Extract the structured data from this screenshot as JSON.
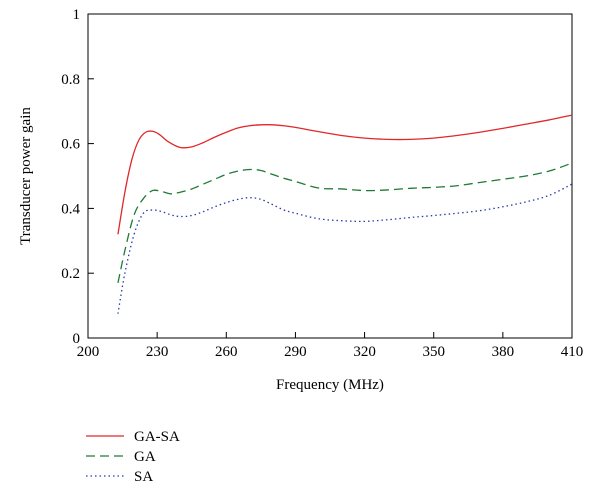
{
  "chart_data": {
    "type": "line",
    "xlabel": "Frequency (MHz)",
    "ylabel": "Transducer power gain",
    "xlim": [
      200,
      410
    ],
    "ylim": [
      0,
      1
    ],
    "xticks": [
      200,
      230,
      260,
      290,
      320,
      350,
      380,
      410
    ],
    "xtick_labels": [
      "200",
      "230",
      "260",
      "290",
      "320",
      "350",
      "380",
      "410"
    ],
    "yticks": [
      0,
      0.2,
      0.4,
      0.6,
      0.8,
      1
    ],
    "ytick_labels": [
      "0",
      "0.2",
      "0.4",
      "0.6",
      "0.8",
      "1"
    ],
    "grid": false,
    "legend_position": "below",
    "series": [
      {
        "name": "GA-SA",
        "color": "#e0282a",
        "dash": "solid",
        "x": [
          213,
          216,
          219,
          222,
          225,
          228,
          231,
          235,
          240,
          245,
          250,
          255,
          260,
          265,
          270,
          275,
          280,
          285,
          290,
          300,
          310,
          320,
          330,
          340,
          350,
          360,
          370,
          380,
          390,
          400,
          410
        ],
        "y": [
          0.32,
          0.45,
          0.55,
          0.61,
          0.635,
          0.638,
          0.628,
          0.605,
          0.588,
          0.59,
          0.603,
          0.62,
          0.635,
          0.648,
          0.655,
          0.658,
          0.658,
          0.655,
          0.65,
          0.637,
          0.625,
          0.617,
          0.613,
          0.613,
          0.617,
          0.625,
          0.635,
          0.647,
          0.66,
          0.673,
          0.688
        ]
      },
      {
        "name": "GA",
        "color": "#1f7a36",
        "dash": "dashed",
        "x": [
          213,
          216,
          220,
          224,
          228,
          232,
          236,
          240,
          245,
          250,
          255,
          260,
          265,
          270,
          275,
          280,
          285,
          290,
          300,
          310,
          320,
          330,
          340,
          350,
          360,
          370,
          380,
          390,
          400,
          410
        ],
        "y": [
          0.17,
          0.27,
          0.38,
          0.43,
          0.455,
          0.452,
          0.445,
          0.45,
          0.46,
          0.475,
          0.49,
          0.505,
          0.515,
          0.52,
          0.517,
          0.505,
          0.493,
          0.483,
          0.463,
          0.46,
          0.455,
          0.457,
          0.462,
          0.465,
          0.47,
          0.48,
          0.49,
          0.5,
          0.515,
          0.54
        ]
      },
      {
        "name": "SA",
        "color": "#2a3aa8",
        "dash": "dotted",
        "x": [
          213,
          216,
          220,
          224,
          228,
          232,
          236,
          240,
          245,
          250,
          255,
          260,
          265,
          270,
          275,
          280,
          285,
          290,
          300,
          310,
          320,
          330,
          340,
          350,
          360,
          370,
          380,
          390,
          400,
          410
        ],
        "y": [
          0.075,
          0.2,
          0.32,
          0.385,
          0.395,
          0.39,
          0.38,
          0.375,
          0.378,
          0.39,
          0.405,
          0.418,
          0.428,
          0.433,
          0.428,
          0.412,
          0.395,
          0.385,
          0.368,
          0.362,
          0.36,
          0.365,
          0.372,
          0.378,
          0.385,
          0.393,
          0.405,
          0.42,
          0.44,
          0.475
        ]
      }
    ]
  }
}
